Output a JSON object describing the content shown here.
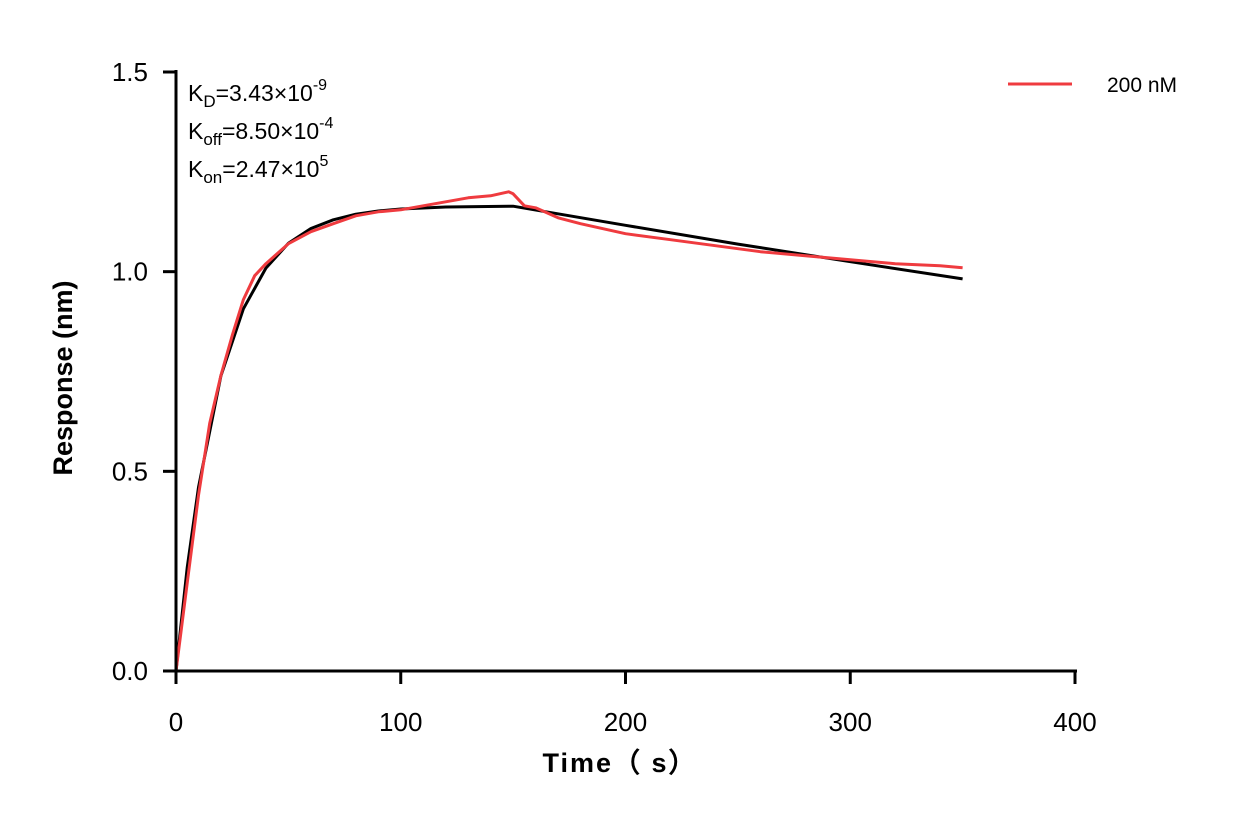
{
  "chart_data": {
    "type": "line",
    "title": "",
    "xlabel": "Time（ s）",
    "ylabel": "Response (nm)",
    "xlim": [
      0,
      400
    ],
    "ylim": [
      0,
      1.5
    ],
    "xticks": [
      0,
      100,
      200,
      300,
      400
    ],
    "yticks": [
      0.0,
      0.5,
      1.0,
      1.5
    ],
    "xtick_labels": [
      "0",
      "100",
      "200",
      "300",
      "400"
    ],
    "ytick_labels": [
      "0.0",
      "0.5",
      "1.0",
      "1.5"
    ],
    "grid": false,
    "legend_position": "top-right",
    "annotations": [
      {
        "base": "K",
        "sub": "D",
        "text": "=3.43×10",
        "sup": "-9"
      },
      {
        "base": "K",
        "sub": "off",
        "text": "=8.50×10",
        "sup": "-4"
      },
      {
        "base": "K",
        "sub": "on",
        "text": "=2.47×10",
        "sup": "5"
      }
    ],
    "series": [
      {
        "name": "200 nM",
        "color": "#ef3b3f",
        "x": [
          0,
          5,
          10,
          15,
          20,
          25,
          30,
          35,
          40,
          50,
          60,
          70,
          80,
          90,
          100,
          110,
          120,
          130,
          140,
          148,
          150,
          155,
          160,
          170,
          180,
          200,
          220,
          240,
          260,
          280,
          300,
          320,
          340,
          350
        ],
        "y": [
          0,
          0.22,
          0.44,
          0.62,
          0.74,
          0.84,
          0.93,
          0.99,
          1.02,
          1.07,
          1.1,
          1.12,
          1.14,
          1.15,
          1.155,
          1.165,
          1.175,
          1.185,
          1.19,
          1.2,
          1.195,
          1.165,
          1.16,
          1.135,
          1.12,
          1.095,
          1.08,
          1.065,
          1.05,
          1.04,
          1.03,
          1.02,
          1.015,
          1.01
        ]
      },
      {
        "color": "#000000",
        "x": [
          0,
          5,
          10,
          20,
          30,
          40,
          50,
          60,
          70,
          80,
          90,
          100,
          120,
          150,
          200,
          250,
          300,
          350
        ],
        "y": [
          0,
          0.259,
          0.46,
          0.739,
          0.907,
          1.009,
          1.071,
          1.108,
          1.13,
          1.144,
          1.152,
          1.157,
          1.162,
          1.164,
          1.116,
          1.069,
          1.025,
          0.982
        ]
      }
    ]
  }
}
